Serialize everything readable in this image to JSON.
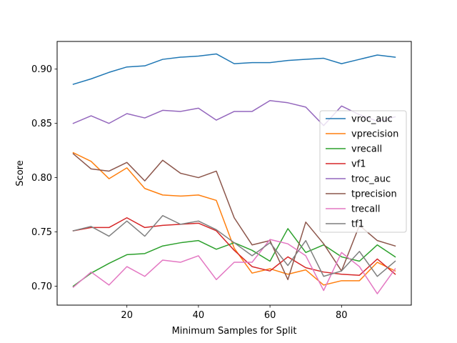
{
  "chart_data": {
    "type": "line",
    "xlabel": "Minimum Samples for Split",
    "ylabel": "Score",
    "xlim": [
      0.5,
      99.5
    ],
    "ylim": [
      0.6825,
      0.9255
    ],
    "xticks": [
      20,
      40,
      60,
      80
    ],
    "yticks": [
      0.7,
      0.75,
      0.8,
      0.85,
      0.9
    ],
    "xtick_labels": [
      "20",
      "40",
      "60",
      "80"
    ],
    "ytick_labels": [
      "0.70",
      "0.75",
      "0.80",
      "0.85",
      "0.90"
    ],
    "legend_position": "right",
    "x": [
      5,
      10,
      15,
      20,
      25,
      30,
      35,
      40,
      45,
      50,
      55,
      60,
      65,
      70,
      75,
      80,
      85,
      90,
      95
    ],
    "series": [
      {
        "name": "vroc_auc",
        "color": "#1f77b4",
        "values": [
          0.886,
          0.891,
          0.897,
          0.902,
          0.903,
          0.909,
          0.911,
          0.912,
          0.914,
          0.905,
          0.906,
          0.906,
          0.908,
          0.909,
          0.91,
          0.905,
          0.909,
          0.913,
          0.911
        ]
      },
      {
        "name": "vprecision",
        "color": "#ff7f0e",
        "values": [
          0.823,
          0.815,
          0.799,
          0.809,
          0.79,
          0.784,
          0.783,
          0.784,
          0.779,
          0.735,
          0.712,
          0.716,
          0.711,
          0.715,
          0.701,
          0.705,
          0.705,
          0.722,
          0.714
        ]
      },
      {
        "name": "vrecall",
        "color": "#2ca02c",
        "values": [
          0.7,
          0.712,
          0.721,
          0.729,
          0.73,
          0.737,
          0.74,
          0.742,
          0.734,
          0.74,
          0.733,
          0.723,
          0.753,
          0.731,
          0.738,
          0.727,
          0.723,
          0.738,
          0.727
        ]
      },
      {
        "name": "vf1",
        "color": "#d62728",
        "values": [
          0.751,
          0.754,
          0.754,
          0.763,
          0.754,
          0.756,
          0.757,
          0.758,
          0.751,
          0.733,
          0.718,
          0.714,
          0.727,
          0.717,
          0.713,
          0.711,
          0.71,
          0.725,
          0.711
        ]
      },
      {
        "name": "troc_auc",
        "color": "#9467bd",
        "values": [
          0.85,
          0.857,
          0.85,
          0.859,
          0.855,
          0.862,
          0.861,
          0.864,
          0.853,
          0.861,
          0.861,
          0.871,
          0.869,
          0.865,
          0.848,
          0.866,
          0.858,
          0.852,
          0.856
        ]
      },
      {
        "name": "tprecision",
        "color": "#8c564b",
        "values": [
          0.822,
          0.808,
          0.806,
          0.814,
          0.797,
          0.816,
          0.804,
          0.8,
          0.806,
          0.763,
          0.738,
          0.742,
          0.706,
          0.759,
          0.739,
          0.714,
          0.756,
          0.742,
          0.737
        ]
      },
      {
        "name": "trecall",
        "color": "#e377c2",
        "values": [
          0.699,
          0.713,
          0.701,
          0.718,
          0.709,
          0.724,
          0.722,
          0.728,
          0.706,
          0.722,
          0.722,
          0.743,
          0.739,
          0.728,
          0.696,
          0.731,
          0.718,
          0.693,
          0.716
        ]
      },
      {
        "name": "tf1",
        "color": "#7f7f7f",
        "values": [
          0.751,
          0.755,
          0.746,
          0.76,
          0.746,
          0.765,
          0.757,
          0.76,
          0.752,
          0.74,
          0.728,
          0.74,
          0.719,
          0.742,
          0.709,
          0.714,
          0.732,
          0.709,
          0.723
        ]
      }
    ]
  }
}
